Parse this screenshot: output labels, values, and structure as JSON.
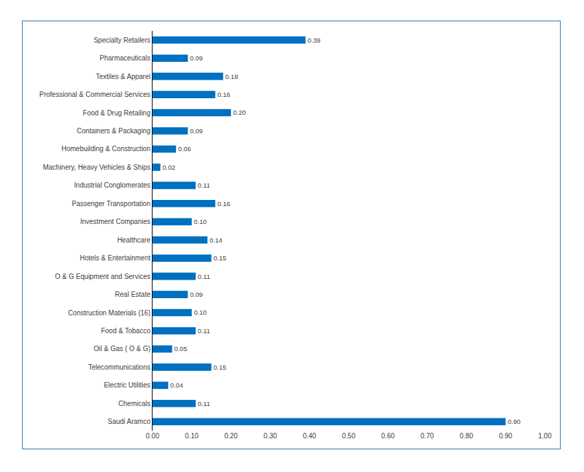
{
  "chart_data": {
    "type": "bar",
    "orientation": "horizontal",
    "categories": [
      "Specialty Retailers",
      "Pharmaceuticals",
      "Textiles & Apparel",
      "Professional & Commercial Services",
      "Food & Drug Retailing",
      "Containers & Packaging",
      "Homebuilding & Construction",
      "Machinery, Heavy Vehicles & Ships",
      "Industrial Conglomerates",
      "Passenger Transportation",
      "Investment Companies",
      "Healthcare",
      "Hotels & Entertainment",
      "O & G Equipment and Services",
      "Real Estate",
      "Construction Materials (16)",
      "Food & Tobacco",
      "Oil & Gas ( O & G)",
      "Telecommunications",
      "Electric Utilities",
      "Chemicals",
      "Saudi Aramco"
    ],
    "values": [
      0.39,
      0.09,
      0.18,
      0.16,
      0.2,
      0.09,
      0.06,
      0.02,
      0.11,
      0.16,
      0.1,
      0.14,
      0.15,
      0.11,
      0.09,
      0.1,
      0.11,
      0.05,
      0.15,
      0.04,
      0.11,
      0.9
    ],
    "value_labels": [
      "0.39",
      "0.09",
      "0.18",
      "0.16",
      "0.20",
      "0.09",
      "0.06",
      "0.02",
      "0.11",
      "0.16",
      "0.10",
      "0.14",
      "0.15",
      "0.11",
      "0.09",
      "0.10",
      "0.11",
      "0.05",
      "0.15",
      "0.04",
      "0.11",
      "0.90"
    ],
    "color": "#0070c0",
    "data_labels": true,
    "grid": false,
    "xlim": [
      0,
      1
    ],
    "xticks": [
      {
        "value": 0,
        "label": "0.00"
      },
      {
        "value": 0.1,
        "label": "0.10"
      },
      {
        "value": 0.2,
        "label": "0.20"
      },
      {
        "value": 0.3,
        "label": "0.30"
      },
      {
        "value": 0.4,
        "label": "0.40"
      },
      {
        "value": 0.5,
        "label": "0.50"
      },
      {
        "value": 0.6,
        "label": "0.60"
      },
      {
        "value": 0.7,
        "label": "0.70"
      },
      {
        "value": 0.8,
        "label": "0.80"
      },
      {
        "value": 0.9,
        "label": "0.90"
      },
      {
        "value": 1,
        "label": "1.00"
      }
    ]
  }
}
